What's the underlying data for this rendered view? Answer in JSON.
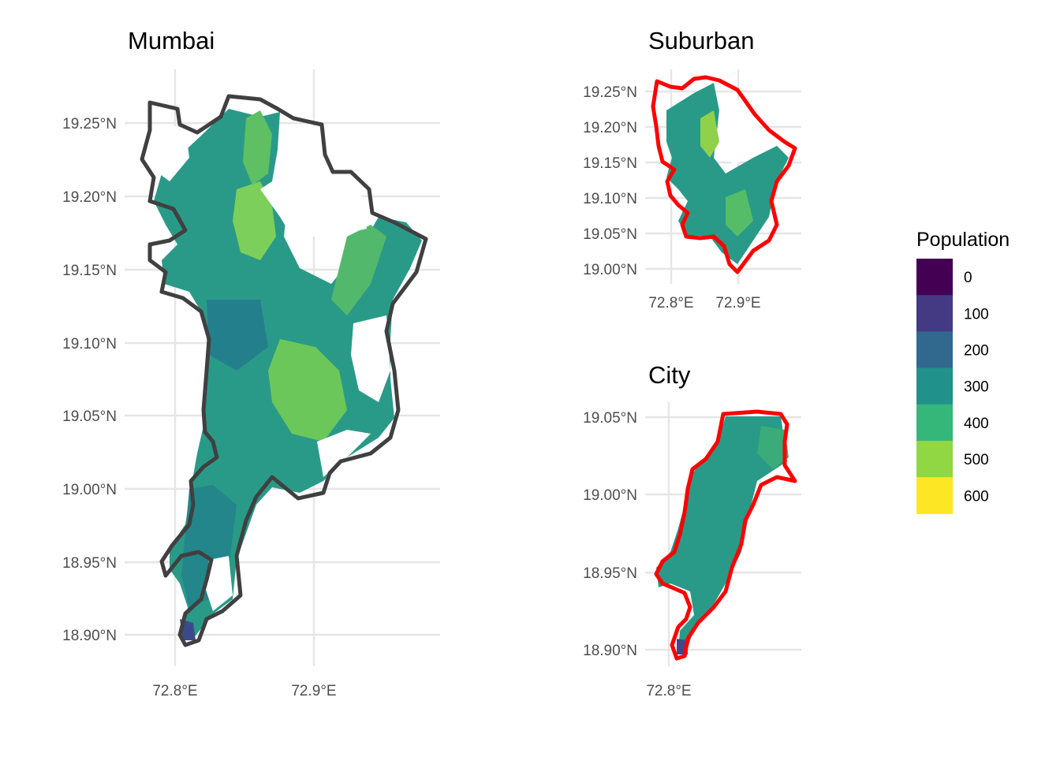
{
  "panels": {
    "mumbai": {
      "title": "Mumbai",
      "lat_labels": [
        "19.25°N",
        "19.20°N",
        "19.15°N",
        "19.10°N",
        "19.05°N",
        "19.00°N",
        "18.95°N",
        "18.90°N"
      ],
      "lon_labels": [
        "72.8°E",
        "72.9°E"
      ],
      "boundary_color": "#404040"
    },
    "suburban": {
      "title": "Suburban",
      "lat_labels": [
        "19.25°N",
        "19.20°N",
        "19.15°N",
        "19.10°N",
        "19.05°N",
        "19.00°N"
      ],
      "lon_labels": [
        "72.8°E",
        "72.9°E"
      ],
      "boundary_color": "#ff0000"
    },
    "city": {
      "title": "City",
      "lat_labels": [
        "19.05°N",
        "19.00°N",
        "18.95°N",
        "18.90°N"
      ],
      "lon_labels": [
        "72.8°E"
      ],
      "boundary_color": "#ff0000"
    }
  },
  "legend": {
    "title": "Population",
    "items": [
      {
        "label": "0",
        "color": "#440154"
      },
      {
        "label": "100",
        "color": "#443983"
      },
      {
        "label": "200",
        "color": "#31688e"
      },
      {
        "label": "300",
        "color": "#21918c"
      },
      {
        "label": "400",
        "color": "#35b779"
      },
      {
        "label": "500",
        "color": "#90d743"
      },
      {
        "label": "600",
        "color": "#fde725"
      }
    ]
  }
}
